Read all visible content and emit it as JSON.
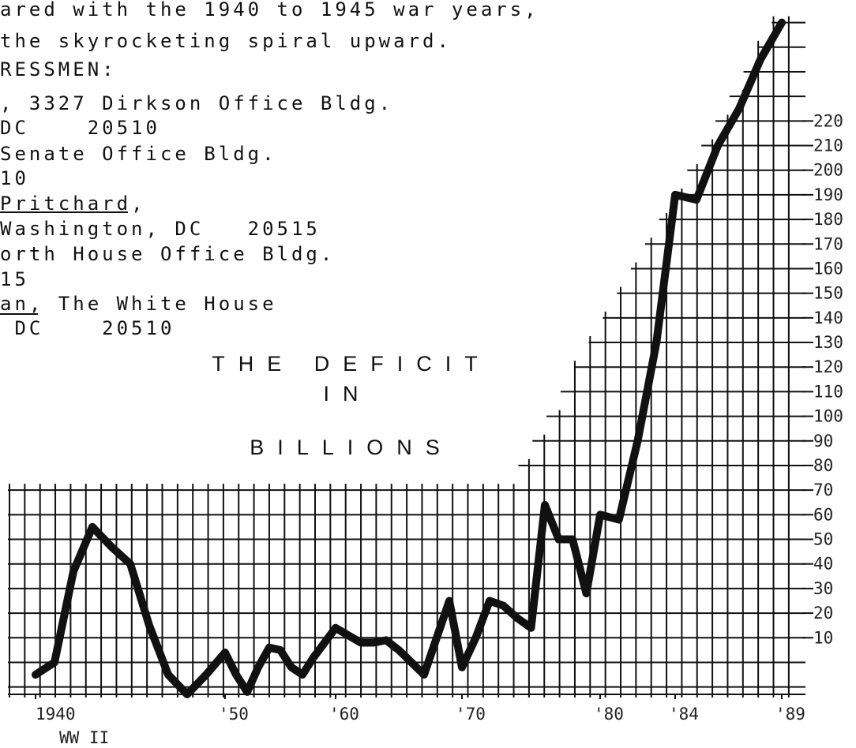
{
  "document": {
    "lines": [
      "ared with the 1940 to 1945 war years,",
      "the skyrocketing spiral upward.",
      "RESSMEN:",
      ", 3327 Dirkson Office Bldg.",
      "DC    20510",
      "Senate Office Bldg.",
      "10",
      "Pritchard,",
      "Washington, DC   20515",
      "orth House Office Bldg.",
      "15",
      "an, The White House",
      " DC    20510"
    ]
  },
  "chart_data": {
    "type": "line",
    "title_lines": [
      "THE DEFICIT",
      "IN",
      "BILLIONS"
    ],
    "annotation": "WW II",
    "color": "#111111",
    "x": [
      1940,
      1941,
      1942,
      1943,
      1944,
      1945,
      1946,
      1947,
      1948,
      1949,
      1950,
      1951,
      1952,
      1953,
      1954,
      1955,
      1956,
      1957,
      1958,
      1959,
      1960,
      1961,
      1962,
      1963,
      1964,
      1965,
      1966,
      1967,
      1968,
      1969,
      1970,
      1971,
      1972,
      1973,
      1974,
      1975,
      1976,
      1977,
      1978,
      1979,
      1980,
      1981,
      1982,
      1983,
      1984,
      1985,
      1986,
      1987,
      1988,
      1989
    ],
    "values": [
      -5,
      0,
      37,
      55,
      47,
      40,
      15,
      -5,
      -13,
      -5,
      4,
      -5,
      -12,
      -2,
      6,
      5,
      -2,
      -5,
      2,
      8,
      14,
      11,
      8,
      8,
      9,
      5,
      0,
      -5,
      10,
      25,
      -2,
      10,
      25,
      23,
      18,
      14,
      64,
      50,
      50,
      28,
      60,
      58,
      90,
      130,
      190,
      188,
      210,
      225,
      245,
      260
    ],
    "xlim": [
      1940,
      1989
    ],
    "xticks": [
      1940,
      {
        "value": 1950,
        "label": "'50"
      },
      {
        "value": 1960,
        "label": "'60"
      },
      {
        "value": 1970,
        "label": "'70"
      },
      {
        "value": 1980,
        "label": "'80"
      },
      {
        "value": 1984,
        "label": "'84"
      },
      {
        "value": 1989,
        "label": "'89"
      }
    ],
    "ylim": [
      -13,
      265
    ],
    "yticks": [
      10,
      20,
      30,
      40,
      50,
      60,
      70,
      80,
      90,
      100,
      110,
      120,
      130,
      140,
      150,
      160,
      170,
      180,
      190,
      200,
      210,
      220
    ],
    "grid": true
  }
}
